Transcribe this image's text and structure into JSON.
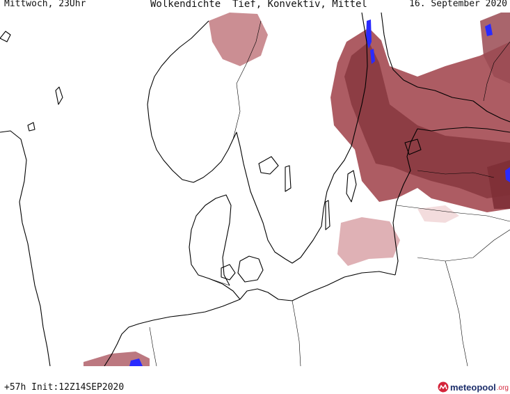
{
  "header": {
    "left": "Mittwoch, 23Uhr",
    "center": "Wolkendichte  Tief, Konvektiv, Mittel",
    "right": "16. September 2020"
  },
  "footer": {
    "run_info": "+57h Init:12Z14SEP2020",
    "logo_text": "meteopool",
    "logo_tld": ".org"
  },
  "colors": {
    "cloud_heavy": "#8a3a40",
    "cloud_medium": "#b0606a",
    "cloud_light": "#dca9ad",
    "cloud_faint": "#f0d3d5",
    "lakes": "#2a2aff",
    "coastline": "#000000",
    "background": "#ffffff",
    "logo_primary": "#1d2e6b",
    "logo_accent": "#d4243a"
  }
}
